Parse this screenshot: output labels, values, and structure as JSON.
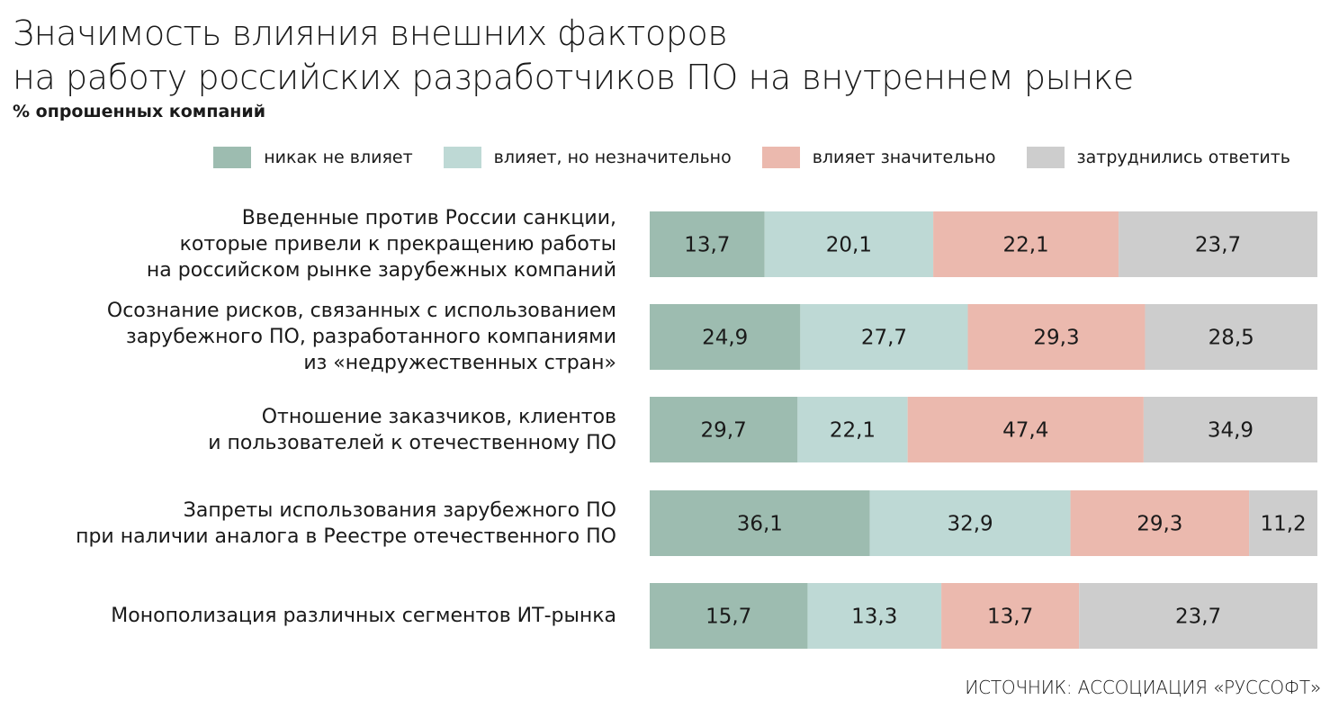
{
  "title_lines": [
    "Значимость влияния внешних факторов",
    "на работу российских разработчиков ПО на внутреннем рынке"
  ],
  "subtitle": "% опрошенных компаний",
  "source": "ИСТОЧНИК: АССОЦИАЦИЯ «РУССОФТ»",
  "chart_data": {
    "type": "bar",
    "orientation": "horizontal",
    "stacked": true,
    "unit": "% опрошенных компаний",
    "legend_position": "top-right",
    "grid": false,
    "categories": [
      [
        "Введенные против России санкции,",
        "которые привели к прекращению работы",
        "на российском рынке зарубежных компаний"
      ],
      [
        "Осознание рисков, связанных с использованием",
        "зарубежного ПО, разработанного компаниями",
        "из «недружественных стран»"
      ],
      [
        "Отношение заказчиков, клиентов",
        "и пользователей к отечественному ПО"
      ],
      [
        "Запреты использования зарубежного ПО",
        "при наличии аналога в Реестре отечественного ПО"
      ],
      [
        "Монополизация различных сегментов ИТ-рынка"
      ]
    ],
    "series": [
      {
        "name": "никак не влияет",
        "color": "#9dbcb0",
        "values": [
          13.7,
          24.9,
          29.7,
          36.1,
          15.7
        ],
        "labels": [
          "13,7",
          "24,9",
          "29,7",
          "36,1",
          "15,7"
        ]
      },
      {
        "name": "влияет, но незначительно",
        "color": "#bed9d5",
        "values": [
          20.1,
          27.7,
          22.1,
          32.9,
          13.3
        ],
        "labels": [
          "20,1",
          "27,7",
          "22,1",
          "32,9",
          "13,3"
        ]
      },
      {
        "name": "влияет значительно",
        "color": "#ebb9ae",
        "values": [
          22.1,
          29.3,
          47.4,
          29.3,
          13.7
        ],
        "labels": [
          "22,1",
          "29,3",
          "47,4",
          "29,3",
          "13,7"
        ]
      },
      {
        "name": "затруднились ответить",
        "color": "#cdcdcd",
        "values": [
          23.7,
          28.5,
          34.9,
          11.2,
          23.7
        ],
        "labels": [
          "23,7",
          "28,5",
          "34,9",
          "11,2",
          "23,7"
        ]
      }
    ]
  }
}
